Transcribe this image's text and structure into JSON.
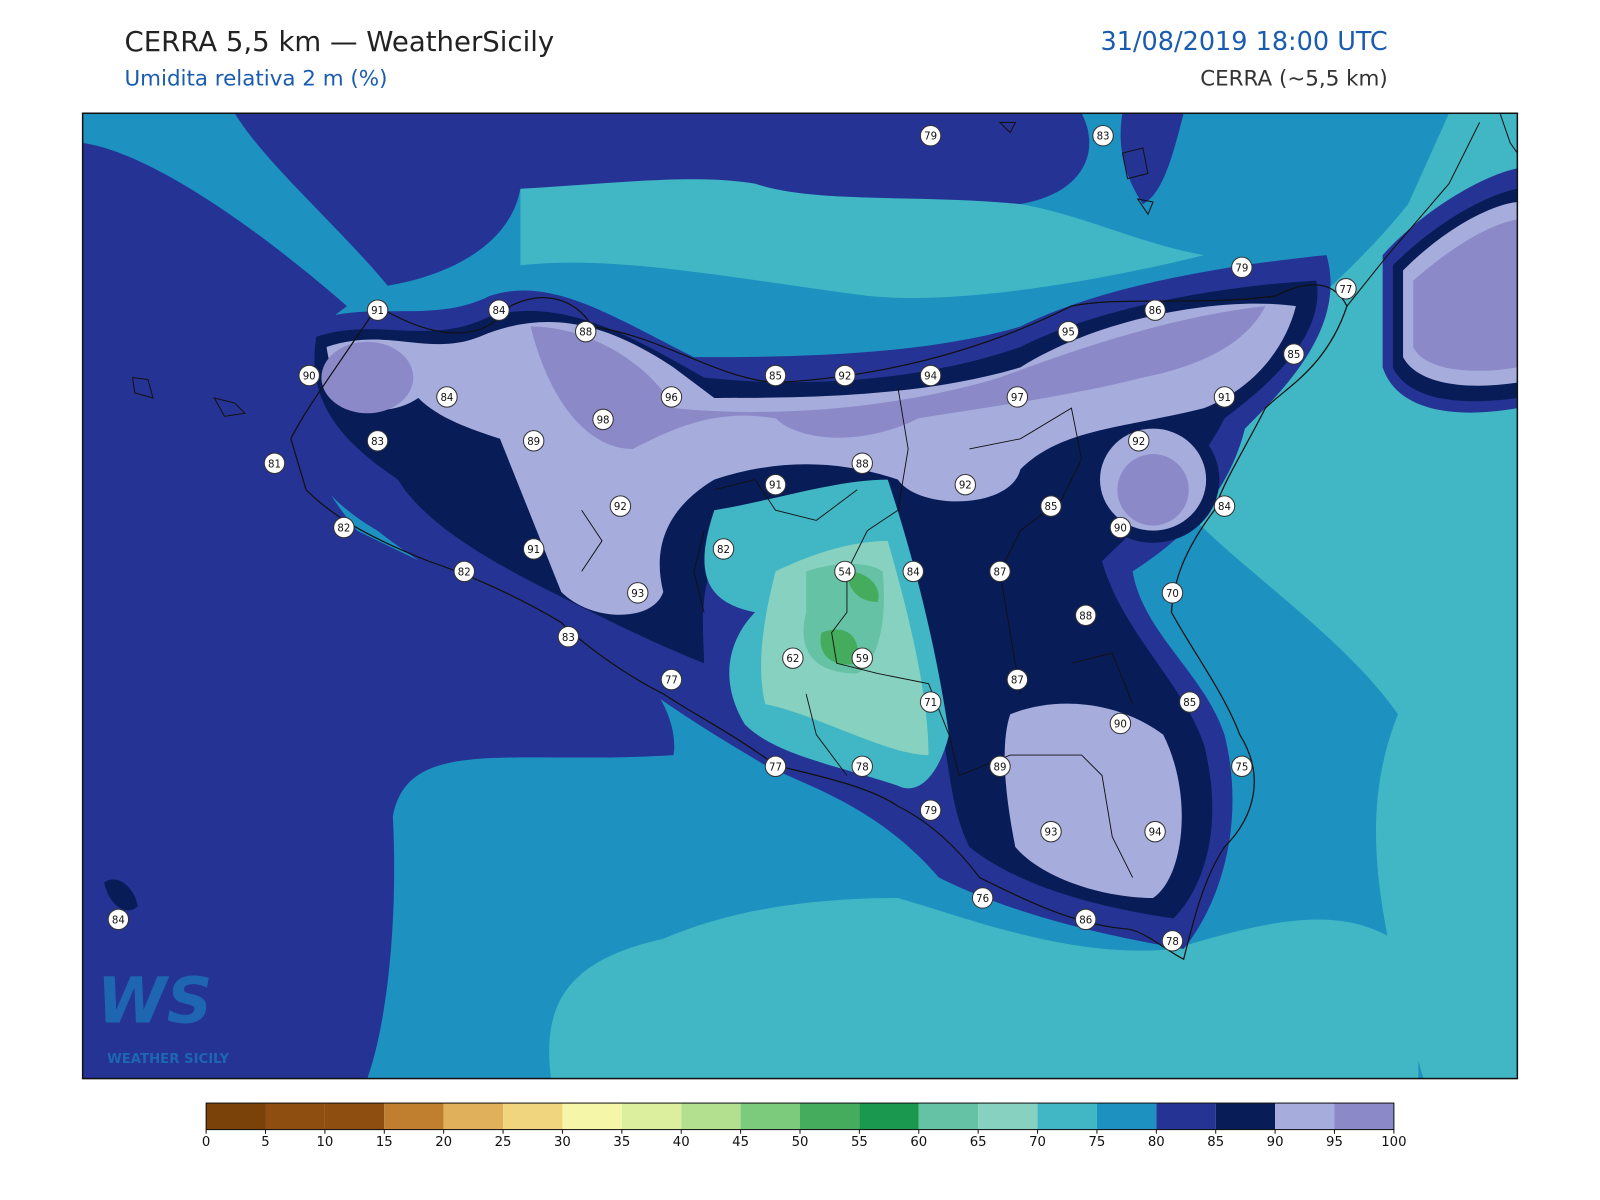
{
  "header": {
    "title": "CERRA 5,5 km — WeatherSicily",
    "subtitle": "Umidita relativa 2 m (%)",
    "datetime": "31/08/2019 18:00 UTC",
    "model": "CERRA (~5,5 km)"
  },
  "stations": [
    79,
    83,
    79,
    77,
    91,
    84,
    88,
    86,
    95,
    85,
    90,
    85,
    92,
    94,
    84,
    96,
    97,
    91,
    98,
    83,
    89,
    92,
    81,
    88,
    91,
    92,
    92,
    85,
    84,
    82,
    90,
    91,
    82,
    54,
    84,
    87,
    82,
    93,
    70,
    88,
    83,
    62,
    59,
    77,
    87,
    71,
    85,
    90,
    77,
    78,
    89,
    75,
    79,
    93,
    94,
    76,
    86,
    84,
    78
  ],
  "colorbar": {
    "ticks": [
      0,
      5,
      10,
      15,
      20,
      25,
      30,
      35,
      40,
      45,
      50,
      55,
      60,
      65,
      70,
      75,
      80,
      85,
      90,
      95,
      100
    ],
    "colors": [
      "#7a4208",
      "#8e4e10",
      "#8e4e10",
      "#bf7f2f",
      "#e0b05a",
      "#f1d57e",
      "#f6f6a8",
      "#dcef9f",
      "#b3e08e",
      "#7ccb7c",
      "#44ac5c",
      "#1b9850",
      "#66c2a4",
      "#86d1bf",
      "#41b6c4",
      "#1d91c0",
      "#253494",
      "#081d58",
      "#a6acdc",
      "#8c89c8"
    ]
  },
  "logo": {
    "mark": "WS",
    "text": "WEATHER SICILY"
  }
}
